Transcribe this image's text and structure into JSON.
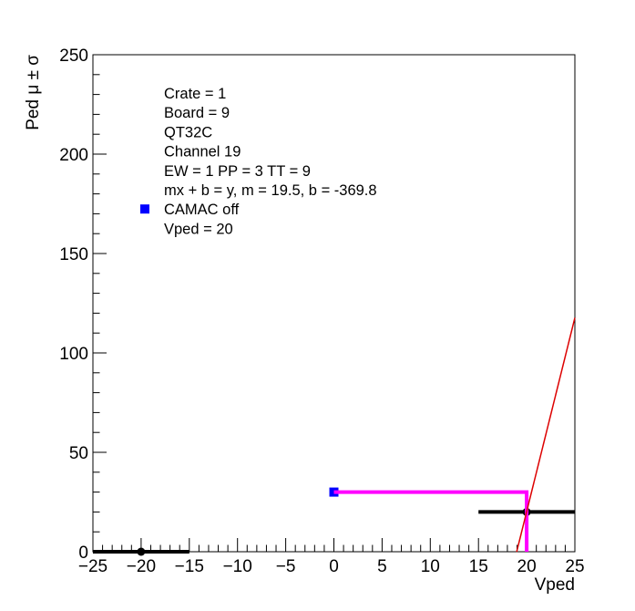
{
  "chart_data": {
    "type": "scatter",
    "xlabel": "Vped",
    "ylabel": "Ped μ ± σ",
    "xlim": [
      -25,
      25
    ],
    "ylim": [
      0,
      250
    ],
    "x_ticks": [
      "−25",
      "−20",
      "−15",
      "−10",
      "−5",
      "0",
      "5",
      "10",
      "15",
      "20",
      "25"
    ],
    "x_tick_values": [
      -25,
      -20,
      -15,
      -10,
      -5,
      0,
      5,
      10,
      15,
      20,
      25
    ],
    "y_ticks": [
      "0",
      "50",
      "100",
      "150",
      "200",
      "250"
    ],
    "y_tick_values": [
      0,
      50,
      100,
      150,
      200,
      250
    ],
    "legend": {
      "lines": [
        "Crate = 1",
        "Board = 9",
        "QT32C",
        "Channel 19",
        "EW = 1 PP = 3 TT = 9",
        "mx + b = y, m = 19.5, b = -369.8",
        "CAMAC off",
        "Vped = 20"
      ],
      "marker_line_index": 6,
      "marker_color": "#0000ff"
    },
    "series": [
      {
        "kind": "points",
        "color": "#000000",
        "points": [
          {
            "x": -20,
            "y": 0,
            "xerr": 5,
            "yerr": 0
          },
          {
            "x": 20,
            "y": 20,
            "xerr": 5,
            "yerr": 0
          }
        ]
      },
      {
        "kind": "points",
        "color": "#0000ff",
        "marker": "square",
        "points": [
          {
            "x": 0,
            "y": 30,
            "xerr": 0.3,
            "yerr": 0
          }
        ]
      },
      {
        "kind": "polyline",
        "color": "#ff00ff",
        "points": [
          [
            0,
            30
          ],
          [
            20,
            30
          ],
          [
            20,
            0
          ]
        ]
      },
      {
        "kind": "fit-line",
        "color": "#dd0000",
        "m": 19.5,
        "b": -369.8,
        "x_range": [
          18.96,
          25
        ]
      }
    ]
  }
}
